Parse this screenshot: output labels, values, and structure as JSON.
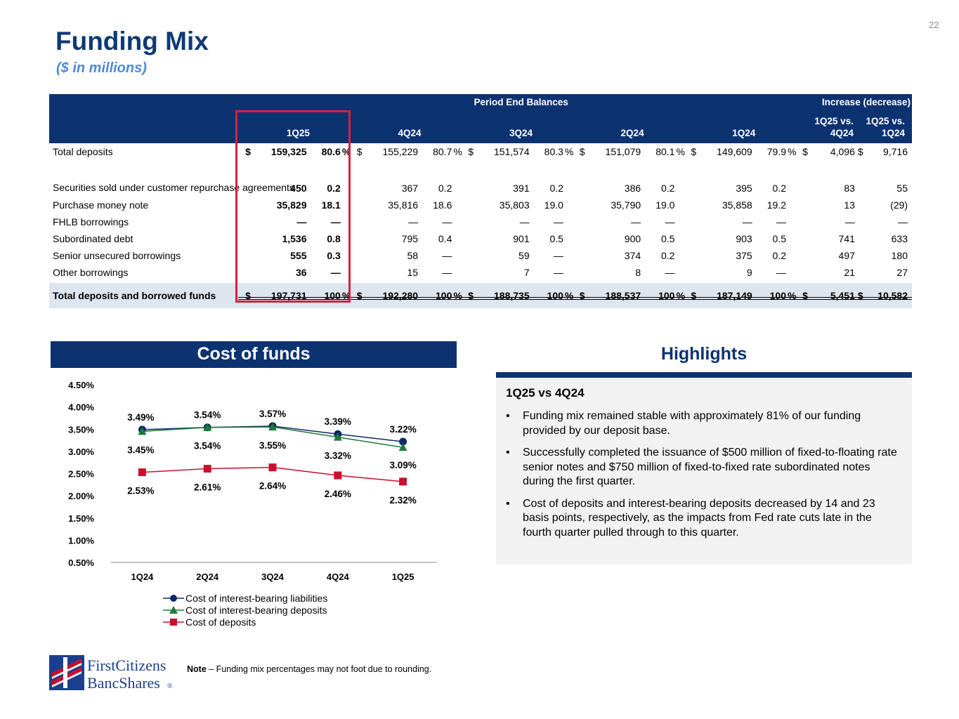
{
  "slide_number": "22",
  "title": "Funding Mix",
  "subtitle": "($ in millions)",
  "table": {
    "group_header_balances": "Period End Balances",
    "group_header_change": "Increase (decrease)",
    "columns": [
      "1Q25",
      "4Q24",
      "3Q24",
      "2Q24",
      "1Q24"
    ],
    "change_columns": [
      [
        "1Q25 vs.",
        "4Q24"
      ],
      [
        "1Q25 vs.",
        "1Q24"
      ]
    ],
    "rows": [
      {
        "label": "Total deposits",
        "cells": [
          [
            "$",
            "159,325",
            "80.6",
            "%"
          ],
          [
            "$",
            "155,229",
            "80.7",
            "%"
          ],
          [
            "$",
            "151,574",
            "80.3",
            "%"
          ],
          [
            "$",
            "151,079",
            "80.1",
            "%"
          ],
          [
            "$",
            "149,609",
            "79.9",
            "%"
          ]
        ],
        "change": [
          [
            "$",
            "4,096"
          ],
          [
            "$",
            "9,716"
          ]
        ]
      },
      {
        "label": "Securities sold under customer repurchase agreements",
        "cells": [
          [
            "",
            "450",
            "0.2",
            ""
          ],
          [
            "",
            "367",
            "0.2",
            ""
          ],
          [
            "",
            "391",
            "0.2",
            ""
          ],
          [
            "",
            "386",
            "0.2",
            ""
          ],
          [
            "",
            "395",
            "0.2",
            ""
          ]
        ],
        "change": [
          [
            "",
            "83"
          ],
          [
            "",
            "55"
          ]
        ]
      },
      {
        "label": "Purchase money note",
        "cells": [
          [
            "",
            "35,829",
            "18.1",
            ""
          ],
          [
            "",
            "35,816",
            "18.6",
            ""
          ],
          [
            "",
            "35,803",
            "19.0",
            ""
          ],
          [
            "",
            "35,790",
            "19.0",
            ""
          ],
          [
            "",
            "35,858",
            "19.2",
            ""
          ]
        ],
        "change": [
          [
            "",
            "13"
          ],
          [
            "",
            "(29)"
          ]
        ]
      },
      {
        "label": "FHLB borrowings",
        "cells": [
          [
            "",
            "—",
            "—",
            ""
          ],
          [
            "",
            "—",
            "—",
            ""
          ],
          [
            "",
            "—",
            "—",
            ""
          ],
          [
            "",
            "—",
            "—",
            ""
          ],
          [
            "",
            "—",
            "—",
            ""
          ]
        ],
        "change": [
          [
            "",
            "—"
          ],
          [
            "",
            "—"
          ]
        ]
      },
      {
        "label": "Subordinated debt",
        "cells": [
          [
            "",
            "1,536",
            "0.8",
            ""
          ],
          [
            "",
            "795",
            "0.4",
            ""
          ],
          [
            "",
            "901",
            "0.5",
            ""
          ],
          [
            "",
            "900",
            "0.5",
            ""
          ],
          [
            "",
            "903",
            "0.5",
            ""
          ]
        ],
        "change": [
          [
            "",
            "741"
          ],
          [
            "",
            "633"
          ]
        ]
      },
      {
        "label": "Senior unsecured borrowings",
        "cells": [
          [
            "",
            "555",
            "0.3",
            ""
          ],
          [
            "",
            "58",
            "—",
            ""
          ],
          [
            "",
            "59",
            "—",
            ""
          ],
          [
            "",
            "374",
            "0.2",
            ""
          ],
          [
            "",
            "375",
            "0.2",
            ""
          ]
        ],
        "change": [
          [
            "",
            "497"
          ],
          [
            "",
            "180"
          ]
        ]
      },
      {
        "label": "Other borrowings",
        "cells": [
          [
            "",
            "36",
            "—",
            ""
          ],
          [
            "",
            "15",
            "—",
            ""
          ],
          [
            "",
            "7",
            "—",
            ""
          ],
          [
            "",
            "8",
            "—",
            ""
          ],
          [
            "",
            "9",
            "—",
            ""
          ]
        ],
        "change": [
          [
            "",
            "21"
          ],
          [
            "",
            "27"
          ]
        ]
      }
    ],
    "total_row": {
      "label": "Total deposits and borrowed funds",
      "cells": [
        [
          "$",
          "197,731",
          "100",
          "%"
        ],
        [
          "$",
          "192,280",
          "100",
          "%"
        ],
        [
          "$",
          "188,735",
          "100",
          "%"
        ],
        [
          "$",
          "188,537",
          "100",
          "%"
        ],
        [
          "$",
          "187,149",
          "100",
          "%"
        ]
      ],
      "change": [
        [
          "$",
          "5,451"
        ],
        [
          "$",
          "10,582"
        ]
      ]
    }
  },
  "cost_of_funds_title": "Cost of funds",
  "chart_data": {
    "type": "line",
    "categories": [
      "1Q24",
      "2Q24",
      "3Q24",
      "4Q24",
      "1Q25"
    ],
    "ylim": [
      0.5,
      4.5
    ],
    "yticks": [
      "0.50%",
      "1.00%",
      "1.50%",
      "2.00%",
      "2.50%",
      "3.00%",
      "3.50%",
      "4.00%",
      "4.50%"
    ],
    "series": [
      {
        "name": "Cost of interest-bearing liabilities",
        "values": [
          3.49,
          3.54,
          3.57,
          3.39,
          3.22
        ],
        "labels": [
          "3.49%",
          "3.54%",
          "3.57%",
          "3.39%",
          "3.22%"
        ],
        "color": "#0d2a66",
        "marker": "circle"
      },
      {
        "name": "Cost of interest-bearing deposits",
        "values": [
          3.45,
          3.54,
          3.55,
          3.32,
          3.09
        ],
        "labels": [
          "3.45%",
          "3.54%",
          "3.55%",
          "3.32%",
          "3.09%"
        ],
        "color": "#1e7a3a",
        "marker": "triangle"
      },
      {
        "name": "Cost of deposits",
        "values": [
          2.53,
          2.61,
          2.64,
          2.46,
          2.32
        ],
        "labels": [
          "2.53%",
          "2.61%",
          "2.64%",
          "2.46%",
          "2.32%"
        ],
        "color": "#c8102e",
        "marker": "square"
      }
    ],
    "legend_position": "bottom"
  },
  "highlights": {
    "title": "Highlights",
    "subtitle": "1Q25 vs 4Q24",
    "bullet": "•",
    "items": [
      "Funding mix remained stable with approximately 81% of our funding provided by our deposit base.",
      "Successfully completed the issuance of $500 million of fixed-to-floating rate senior notes and $750 million of fixed-to-fixed rate subordinated notes during the first quarter.",
      "Cost of deposits and interest-bearing deposits decreased by 14 and 23 basis points, respectively, as the impacts from Fed rate cuts late in the fourth quarter pulled through to this quarter."
    ]
  },
  "logo": {
    "line1": "FirstCitizens",
    "line2": "BancShares",
    "reg": "®"
  },
  "note": {
    "bold": "Note",
    "text": " – Funding mix percentages may not foot due to rounding."
  },
  "colors": {
    "navy": "#0d3270",
    "title_blue": "#0d3a73",
    "subtitle_blue": "#4f8ad6",
    "highlight_red": "#d6203f",
    "total_row_bg": "#dde5ef",
    "panel_bg": "#f2f2f2"
  }
}
